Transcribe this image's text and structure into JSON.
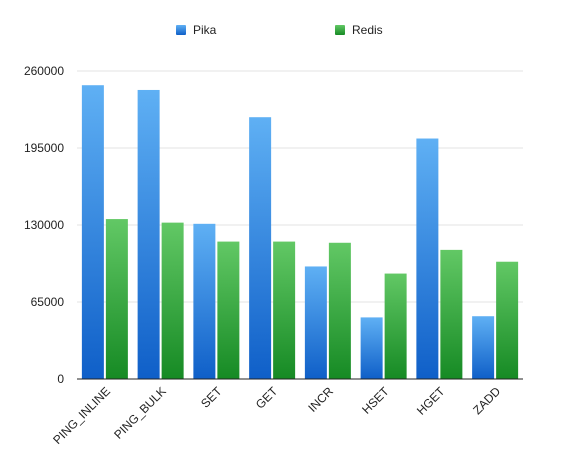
{
  "chart_data": {
    "type": "bar",
    "categories": [
      "PING_INLINE",
      "PING_BULK",
      "SET",
      "GET",
      "INCR",
      "HSET",
      "HGET",
      "ZADD"
    ],
    "series": [
      {
        "name": "Pika",
        "color": "#2f86de",
        "values": [
          248000,
          244000,
          131000,
          221000,
          95000,
          52000,
          203000,
          53000
        ]
      },
      {
        "name": "Redis",
        "color": "#3aa63e",
        "values": [
          135000,
          132000,
          116000,
          116000,
          115000,
          89000,
          109000,
          99000
        ]
      }
    ],
    "yticks": [
      "0",
      "65000",
      "130000",
      "195000",
      "260000"
    ],
    "ylim": [
      0,
      260000
    ],
    "grid": true,
    "legend_position": "top-center",
    "title": "",
    "xlabel": "",
    "ylabel": ""
  }
}
